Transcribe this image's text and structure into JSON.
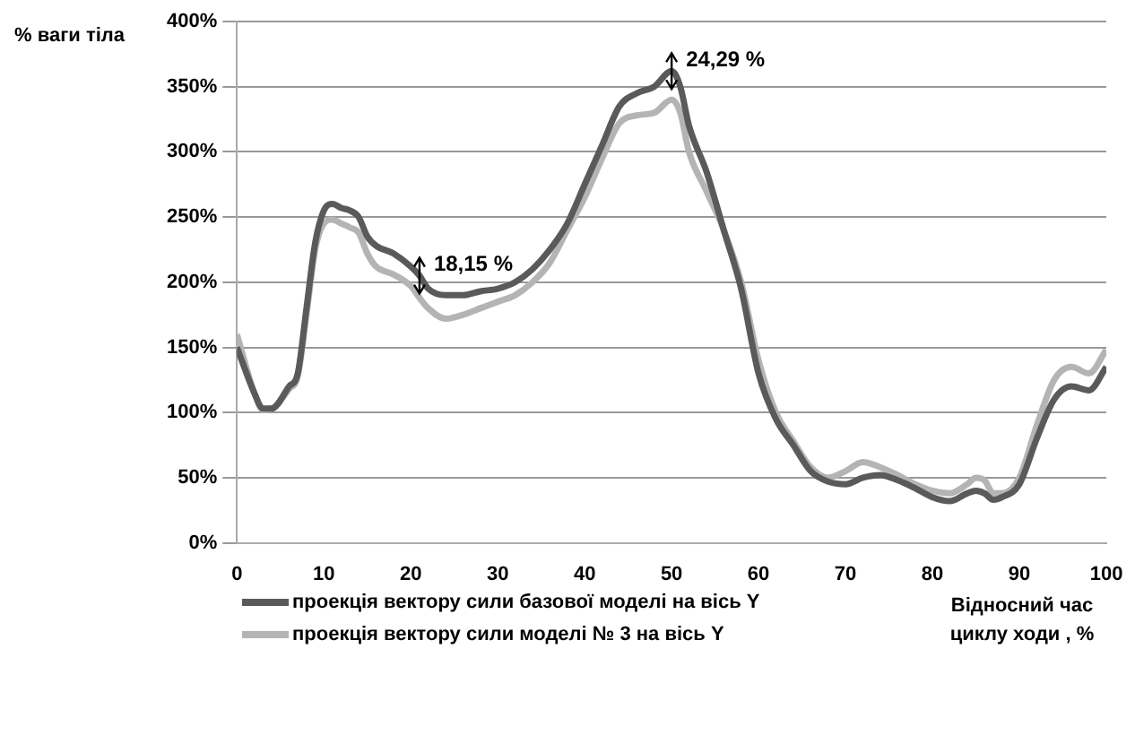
{
  "chart_data": {
    "type": "line",
    "ylabel": "% ваги тіла",
    "xlabel": "Відносний час циклу ходи , %",
    "x": [
      0,
      2,
      3,
      4,
      6,
      7,
      8,
      9,
      10,
      11,
      12,
      13,
      14,
      15,
      16,
      18,
      20,
      21,
      22,
      24,
      26,
      28,
      30,
      32,
      34,
      36,
      38,
      40,
      42,
      44,
      46,
      48,
      50,
      51,
      52,
      54,
      56,
      58,
      60,
      62,
      64,
      66,
      68,
      70,
      72,
      74,
      76,
      78,
      80,
      82,
      84,
      85,
      86,
      87,
      88,
      90,
      92,
      94,
      96,
      98,
      100
    ],
    "series": [
      {
        "name": "проекція вектору сили базової моделі на вісь Y",
        "color": "#5a5a5a",
        "values": [
          150,
          115,
          103,
          103,
          120,
          130,
          180,
          230,
          255,
          260,
          257,
          255,
          250,
          235,
          228,
          222,
          212,
          205,
          195,
          190,
          190,
          193,
          195,
          200,
          210,
          225,
          245,
          275,
          305,
          335,
          345,
          350,
          362,
          350,
          320,
          285,
          240,
          195,
          130,
          95,
          75,
          55,
          47,
          45,
          50,
          52,
          48,
          42,
          35,
          32,
          38,
          40,
          38,
          33,
          35,
          45,
          80,
          110,
          120,
          117,
          135
        ]
      },
      {
        "name": "проекція вектору сили моделі № 3 на вісь Y",
        "color": "#b4b4b4",
        "values": [
          160,
          115,
          102,
          103,
          118,
          128,
          175,
          225,
          245,
          248,
          245,
          242,
          238,
          222,
          212,
          206,
          197,
          188,
          180,
          172,
          175,
          180,
          185,
          190,
          200,
          215,
          240,
          265,
          295,
          322,
          328,
          330,
          340,
          330,
          300,
          270,
          240,
          200,
          140,
          100,
          78,
          58,
          50,
          55,
          62,
          58,
          52,
          45,
          40,
          38,
          45,
          50,
          48,
          38,
          38,
          50,
          90,
          125,
          135,
          130,
          148
        ]
      }
    ],
    "xlim": [
      0,
      100
    ],
    "xticks": [
      0,
      10,
      20,
      30,
      40,
      50,
      60,
      70,
      80,
      90,
      100
    ],
    "ylim": [
      0,
      400
    ],
    "yticks": [
      {
        "value": 0,
        "label": "0%"
      },
      {
        "value": 50,
        "label": "50%"
      },
      {
        "value": 100,
        "label": "100%"
      },
      {
        "value": 150,
        "label": "150%"
      },
      {
        "value": 200,
        "label": "200%"
      },
      {
        "value": 250,
        "label": "250%"
      },
      {
        "value": 300,
        "label": "300%"
      },
      {
        "value": 350,
        "label": "350%"
      },
      {
        "value": 400,
        "label": "400%"
      }
    ],
    "grid": "y",
    "legend": "bottom left",
    "marker": "none",
    "line_style": "solid",
    "annotations": [
      {
        "text": "18,15 %",
        "x": 21,
        "y": 205
      },
      {
        "text": "24,29 %",
        "x": 50,
        "y": 362
      }
    ]
  }
}
